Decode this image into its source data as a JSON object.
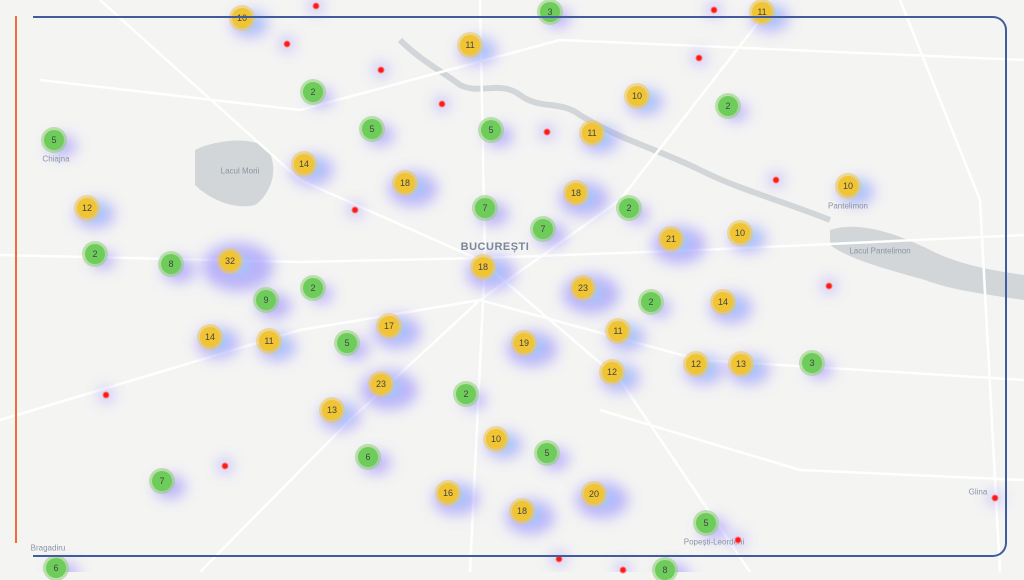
{
  "map": {
    "place_labels": {
      "city": "BUCUREȘTI",
      "pantelimon": "Pantelimon",
      "chiajna": "Chiajna",
      "lacul_morii": "Lacul Morii",
      "lacul_pantelimon": "Lacul Pantelimon",
      "glina": "Glina",
      "popesti": "Popești-Leordeni",
      "bragadiru": "Bragadiru"
    },
    "cluster_counts": [
      10,
      3,
      11,
      11,
      2,
      10,
      2,
      5,
      5,
      5,
      11,
      14,
      18,
      10,
      12,
      18,
      7,
      2,
      7,
      21,
      10,
      2,
      32,
      8,
      18,
      23,
      9,
      2,
      2,
      14,
      17,
      14,
      11,
      5,
      11,
      19,
      12,
      12,
      13,
      3,
      23,
      13,
      2,
      10,
      6,
      5,
      7,
      16,
      20,
      18,
      5,
      6,
      8
    ],
    "single_point_count": 16,
    "colors": {
      "cluster_small": "#6ecc5a",
      "cluster_medium": "#f0c433",
      "single_point": "#ff1a1a",
      "heat_low": "#8a7cff",
      "heat_high": "#3ff0ff",
      "frame_border": "#3f5d9c",
      "left_accent": "#f26b3a"
    }
  }
}
